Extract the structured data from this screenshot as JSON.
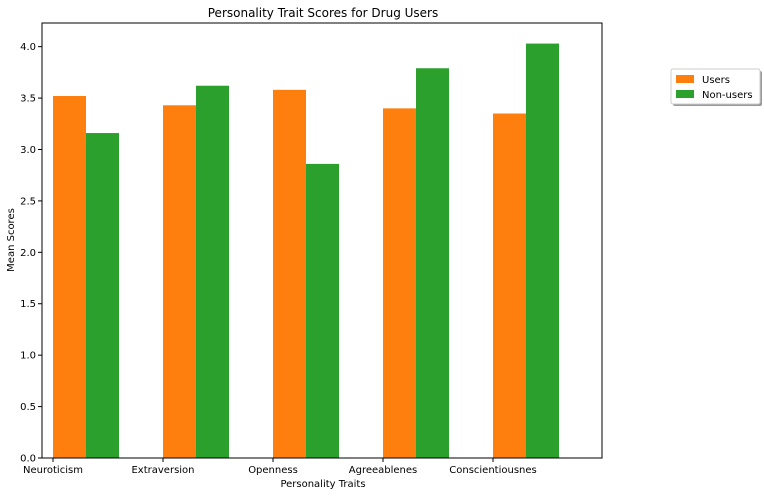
{
  "chart_data": {
    "type": "bar",
    "title": "Personality Trait Scores for Drug Users",
    "xlabel": "Personality Traits",
    "ylabel": "Mean Scores",
    "categories": [
      "Neuroticism",
      "Extraversion",
      "Openness",
      "Agreeablenes",
      "Conscientiousnes"
    ],
    "series": [
      {
        "name": "Users",
        "color": "#ff7f0e",
        "values": [
          3.52,
          3.43,
          3.58,
          3.4,
          3.35
        ]
      },
      {
        "name": "Non-users",
        "color": "#2ca02c",
        "values": [
          3.16,
          3.62,
          2.86,
          3.79,
          4.03
        ]
      }
    ],
    "ylim": [
      0,
      4.23
    ],
    "yticks": [
      "0.0",
      "0.5",
      "1.0",
      "1.5",
      "2.0",
      "2.5",
      "3.0",
      "3.5",
      "4.0"
    ],
    "grid": false,
    "legend_position": "top-right, outside plot"
  }
}
